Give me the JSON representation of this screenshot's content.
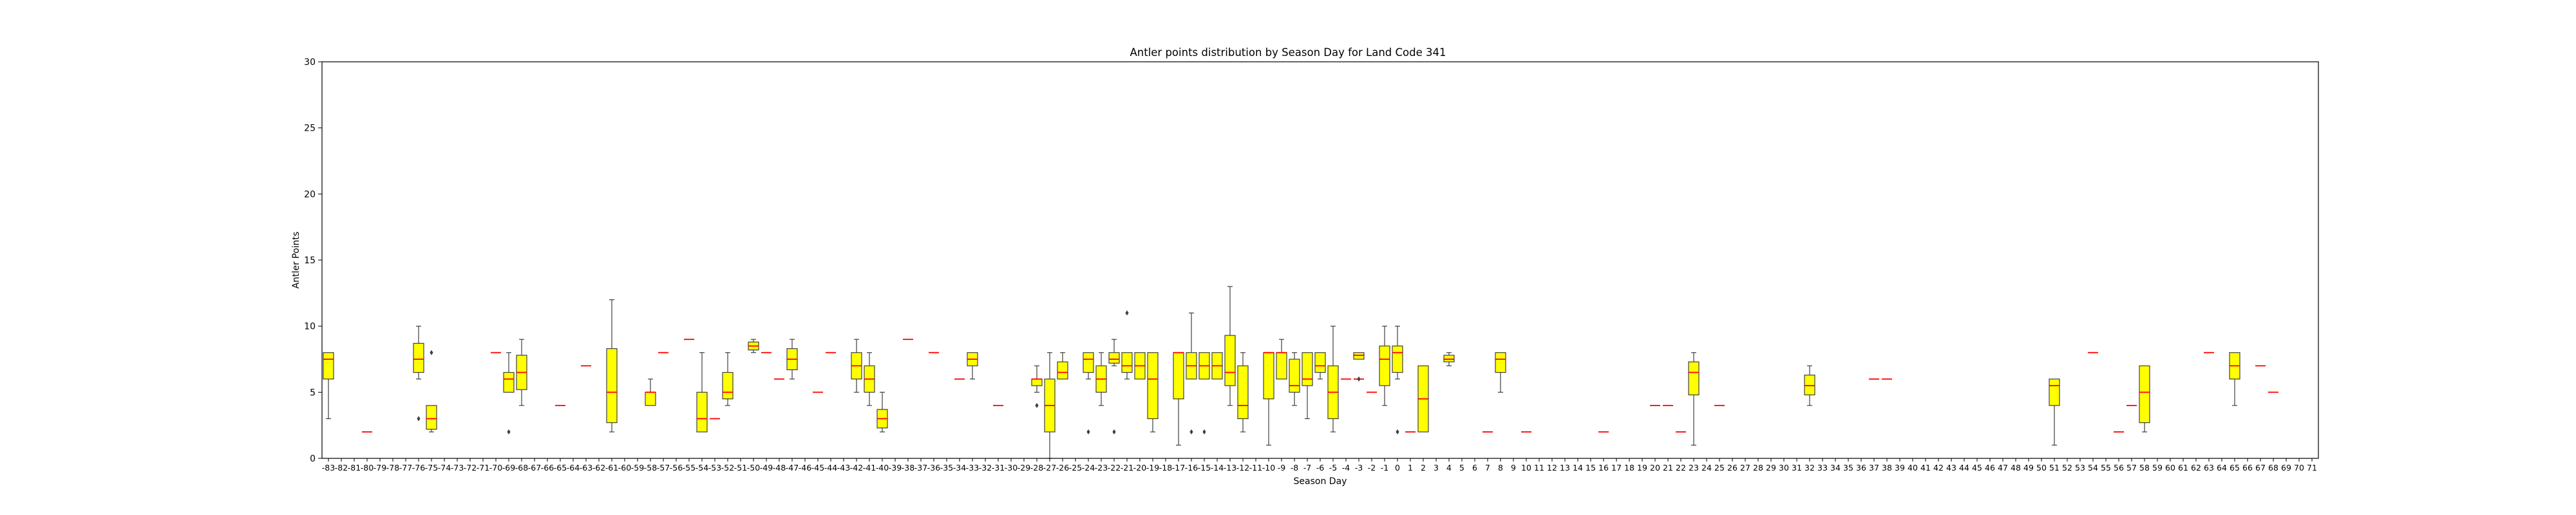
{
  "chart_data": {
    "type": "box",
    "title": "Antler points distribution by Season Day for Land Code 341",
    "xlabel": "Season Day",
    "ylabel": "Antler Points",
    "ylim": [
      0,
      30
    ],
    "yticks": [
      0,
      5,
      10,
      15,
      20,
      25,
      30
    ],
    "x_range": [
      -83,
      71
    ],
    "grid": false,
    "colors": {
      "box_fill": "#ffff00",
      "box_edge": "#3f3f3f",
      "median": "#ff0000",
      "whisker": "#3f3f3f",
      "flier": "#3f3f3f"
    },
    "boxes": [
      {
        "day": -83,
        "whislo": 3,
        "q1": 6,
        "med": 7.5,
        "q3": 8,
        "whishi": 8,
        "fliers": []
      },
      {
        "day": -80,
        "whislo": 2,
        "q1": 2,
        "med": 2,
        "q3": 2,
        "whishi": 2,
        "fliers": []
      },
      {
        "day": -76,
        "whislo": 6,
        "q1": 6.5,
        "med": 7.5,
        "q3": 8.7,
        "whishi": 10,
        "fliers": [
          3
        ]
      },
      {
        "day": -75,
        "whislo": 2,
        "q1": 2.2,
        "med": 3,
        "q3": 4,
        "whishi": 4,
        "fliers": [
          8
        ]
      },
      {
        "day": -70,
        "whislo": 8,
        "q1": 8,
        "med": 8,
        "q3": 8,
        "whishi": 8,
        "fliers": []
      },
      {
        "day": -69,
        "whislo": 5,
        "q1": 5,
        "med": 6,
        "q3": 6.5,
        "whishi": 8,
        "fliers": [
          2
        ]
      },
      {
        "day": -68,
        "whislo": 4,
        "q1": 5.2,
        "med": 6.5,
        "q3": 7.8,
        "whishi": 9,
        "fliers": []
      },
      {
        "day": -65,
        "whislo": 4,
        "q1": 4,
        "med": 4,
        "q3": 4,
        "whishi": 4,
        "fliers": []
      },
      {
        "day": -63,
        "whislo": 7,
        "q1": 7,
        "med": 7,
        "q3": 7,
        "whishi": 7,
        "fliers": []
      },
      {
        "day": -61,
        "whislo": 2,
        "q1": 2.7,
        "med": 5,
        "q3": 8.3,
        "whishi": 12,
        "fliers": []
      },
      {
        "day": -58,
        "whislo": 4,
        "q1": 4,
        "med": 5,
        "q3": 5,
        "whishi": 6,
        "fliers": []
      },
      {
        "day": -57,
        "whislo": 8,
        "q1": 8,
        "med": 8,
        "q3": 8,
        "whishi": 8,
        "fliers": []
      },
      {
        "day": -55,
        "whislo": 9,
        "q1": 9,
        "med": 9,
        "q3": 9,
        "whishi": 9,
        "fliers": []
      },
      {
        "day": -54,
        "whislo": 2,
        "q1": 2,
        "med": 3,
        "q3": 5,
        "whishi": 8,
        "fliers": []
      },
      {
        "day": -53,
        "whislo": 3,
        "q1": 3,
        "med": 3,
        "q3": 3,
        "whishi": 3,
        "fliers": []
      },
      {
        "day": -52,
        "whislo": 4,
        "q1": 4.5,
        "med": 5,
        "q3": 6.5,
        "whishi": 8,
        "fliers": []
      },
      {
        "day": -50,
        "whislo": 8,
        "q1": 8.2,
        "med": 8.5,
        "q3": 8.8,
        "whishi": 9,
        "fliers": []
      },
      {
        "day": -49,
        "whislo": 8,
        "q1": 8,
        "med": 8,
        "q3": 8,
        "whishi": 8,
        "fliers": []
      },
      {
        "day": -48,
        "whislo": 6,
        "q1": 6,
        "med": 6,
        "q3": 6,
        "whishi": 6,
        "fliers": []
      },
      {
        "day": -47,
        "whislo": 6,
        "q1": 6.7,
        "med": 7.5,
        "q3": 8.3,
        "whishi": 9,
        "fliers": []
      },
      {
        "day": -45,
        "whislo": 5,
        "q1": 5,
        "med": 5,
        "q3": 5,
        "whishi": 5,
        "fliers": []
      },
      {
        "day": -44,
        "whislo": 8,
        "q1": 8,
        "med": 8,
        "q3": 8,
        "whishi": 8,
        "fliers": []
      },
      {
        "day": -42,
        "whislo": 5,
        "q1": 6,
        "med": 7,
        "q3": 8,
        "whishi": 9,
        "fliers": []
      },
      {
        "day": -41,
        "whislo": 4,
        "q1": 5,
        "med": 6,
        "q3": 7,
        "whishi": 8,
        "fliers": []
      },
      {
        "day": -40,
        "whislo": 2,
        "q1": 2.3,
        "med": 3,
        "q3": 3.7,
        "whishi": 5,
        "fliers": []
      },
      {
        "day": -38,
        "whislo": 9,
        "q1": 9,
        "med": 9,
        "q3": 9,
        "whishi": 9,
        "fliers": []
      },
      {
        "day": -36,
        "whislo": 8,
        "q1": 8,
        "med": 8,
        "q3": 8,
        "whishi": 8,
        "fliers": []
      },
      {
        "day": -34,
        "whislo": 6,
        "q1": 6,
        "med": 6,
        "q3": 6,
        "whishi": 6,
        "fliers": []
      },
      {
        "day": -33,
        "whislo": 6,
        "q1": 7,
        "med": 7.5,
        "q3": 8,
        "whishi": 8,
        "fliers": []
      },
      {
        "day": -31,
        "whislo": 4,
        "q1": 4,
        "med": 4,
        "q3": 4,
        "whishi": 4,
        "fliers": []
      },
      {
        "day": -28,
        "whislo": 5,
        "q1": 5.5,
        "med": 6,
        "q3": 6,
        "whishi": 7,
        "fliers": [
          4
        ]
      },
      {
        "day": -27,
        "whislo": 0,
        "q1": 2,
        "med": 4,
        "q3": 6,
        "whishi": 8,
        "fliers": []
      },
      {
        "day": -26,
        "whislo": 6,
        "q1": 6,
        "med": 6.5,
        "q3": 7.3,
        "whishi": 8,
        "fliers": []
      },
      {
        "day": -24,
        "whislo": 6,
        "q1": 6.5,
        "med": 7.5,
        "q3": 8,
        "whishi": 8,
        "fliers": [
          2
        ]
      },
      {
        "day": -23,
        "whislo": 4,
        "q1": 5,
        "med": 6,
        "q3": 7,
        "whishi": 8,
        "fliers": []
      },
      {
        "day": -22,
        "whislo": 7,
        "q1": 7.2,
        "med": 7.5,
        "q3": 8,
        "whishi": 9,
        "fliers": [
          2
        ]
      },
      {
        "day": -21,
        "whislo": 6,
        "q1": 6.5,
        "med": 7,
        "q3": 8,
        "whishi": 8,
        "fliers": [
          11
        ]
      },
      {
        "day": -20,
        "whislo": 6,
        "q1": 6,
        "med": 7,
        "q3": 8,
        "whishi": 8,
        "fliers": []
      },
      {
        "day": -19,
        "whislo": 2,
        "q1": 3,
        "med": 6,
        "q3": 8,
        "whishi": 8,
        "fliers": []
      },
      {
        "day": -17,
        "whislo": 1,
        "q1": 4.5,
        "med": 8,
        "q3": 8,
        "whishi": 8,
        "fliers": []
      },
      {
        "day": -16,
        "whislo": 6,
        "q1": 6,
        "med": 7,
        "q3": 8,
        "whishi": 11,
        "fliers": [
          2
        ]
      },
      {
        "day": -15,
        "whislo": 6,
        "q1": 6,
        "med": 7,
        "q3": 8,
        "whishi": 8,
        "fliers": [
          2
        ]
      },
      {
        "day": -14,
        "whislo": 6,
        "q1": 6,
        "med": 7,
        "q3": 8,
        "whishi": 8,
        "fliers": []
      },
      {
        "day": -13,
        "whislo": 4,
        "q1": 5.5,
        "med": 6.5,
        "q3": 9.3,
        "whishi": 13,
        "fliers": []
      },
      {
        "day": -12,
        "whislo": 2,
        "q1": 3,
        "med": 4,
        "q3": 7,
        "whishi": 8,
        "fliers": []
      },
      {
        "day": -10,
        "whislo": 1,
        "q1": 4.5,
        "med": 8,
        "q3": 8,
        "whishi": 8,
        "fliers": []
      },
      {
        "day": -9,
        "whislo": 6,
        "q1": 6,
        "med": 8,
        "q3": 8,
        "whishi": 9,
        "fliers": []
      },
      {
        "day": -8,
        "whislo": 4,
        "q1": 5,
        "med": 5.5,
        "q3": 7.5,
        "whishi": 8,
        "fliers": []
      },
      {
        "day": -7,
        "whislo": 3,
        "q1": 5.5,
        "med": 6,
        "q3": 8,
        "whishi": 8,
        "fliers": []
      },
      {
        "day": -6,
        "whislo": 6,
        "q1": 6.5,
        "med": 7,
        "q3": 8,
        "whishi": 8,
        "fliers": []
      },
      {
        "day": -5,
        "whislo": 2,
        "q1": 3,
        "med": 5,
        "q3": 7,
        "whishi": 10,
        "fliers": []
      },
      {
        "day": -4,
        "whislo": 6,
        "q1": 6,
        "med": 6,
        "q3": 6,
        "whishi": 6,
        "fliers": []
      },
      {
        "day": -3,
        "whislo": 6,
        "q1": 6,
        "med": 6,
        "q3": 6,
        "whishi": 6,
        "fliers": [
          6
        ]
      },
      {
        "day": -2,
        "whislo": 5,
        "q1": 5,
        "med": 5,
        "q3": 5,
        "whishi": 5,
        "fliers": []
      },
      {
        "day": -3,
        "whislo": 7.5,
        "q1": 7.5,
        "med": 7.8,
        "q3": 8,
        "whishi": 8,
        "fliers": []
      },
      {
        "day": -1,
        "whislo": 4,
        "q1": 5.5,
        "med": 7.5,
        "q3": 8.5,
        "whishi": 10,
        "fliers": []
      },
      {
        "day": 0,
        "whislo": 6,
        "q1": 6.5,
        "med": 8,
        "q3": 8.5,
        "whishi": 10,
        "fliers": [
          2
        ]
      },
      {
        "day": 1,
        "whislo": 2,
        "q1": 2,
        "med": 2,
        "q3": 2,
        "whishi": 2,
        "fliers": []
      },
      {
        "day": 2,
        "whislo": 2,
        "q1": 2,
        "med": 4.5,
        "q3": 7,
        "whishi": 7,
        "fliers": []
      },
      {
        "day": 4,
        "whislo": 7,
        "q1": 7.3,
        "med": 7.5,
        "q3": 7.8,
        "whishi": 8,
        "fliers": []
      },
      {
        "day": 7,
        "whislo": 2,
        "q1": 2,
        "med": 2,
        "q3": 2,
        "whishi": 2,
        "fliers": []
      },
      {
        "day": 8,
        "whislo": 5,
        "q1": 6.5,
        "med": 7.5,
        "q3": 8,
        "whishi": 8,
        "fliers": []
      },
      {
        "day": 10,
        "whislo": 2,
        "q1": 2,
        "med": 2,
        "q3": 2,
        "whishi": 2,
        "fliers": []
      },
      {
        "day": 16,
        "whislo": 2,
        "q1": 2,
        "med": 2,
        "q3": 2,
        "whishi": 2,
        "fliers": []
      },
      {
        "day": 20,
        "whislo": 4,
        "q1": 4,
        "med": 4,
        "q3": 4,
        "whishi": 4,
        "fliers": []
      },
      {
        "day": 21,
        "whislo": 4,
        "q1": 4,
        "med": 4,
        "q3": 4,
        "whishi": 4,
        "fliers": []
      },
      {
        "day": 22,
        "whislo": 2,
        "q1": 2,
        "med": 2,
        "q3": 2,
        "whishi": 2,
        "fliers": []
      },
      {
        "day": 23,
        "whislo": 1,
        "q1": 4.8,
        "med": 6.5,
        "q3": 7.3,
        "whishi": 8,
        "fliers": []
      },
      {
        "day": 25,
        "whislo": 4,
        "q1": 4,
        "med": 4,
        "q3": 4,
        "whishi": 4,
        "fliers": []
      },
      {
        "day": 32,
        "whislo": 4,
        "q1": 4.8,
        "med": 5.5,
        "q3": 6.3,
        "whishi": 7,
        "fliers": []
      },
      {
        "day": 37,
        "whislo": 6,
        "q1": 6,
        "med": 6,
        "q3": 6,
        "whishi": 6,
        "fliers": []
      },
      {
        "day": 38,
        "whislo": 6,
        "q1": 6,
        "med": 6,
        "q3": 6,
        "whishi": 6,
        "fliers": []
      },
      {
        "day": 51,
        "whislo": 1,
        "q1": 4,
        "med": 5.5,
        "q3": 6,
        "whishi": 6,
        "fliers": []
      },
      {
        "day": 54,
        "whislo": 8,
        "q1": 8,
        "med": 8,
        "q3": 8,
        "whishi": 8,
        "fliers": []
      },
      {
        "day": 56,
        "whislo": 2,
        "q1": 2,
        "med": 2,
        "q3": 2,
        "whishi": 2,
        "fliers": []
      },
      {
        "day": 57,
        "whislo": 4,
        "q1": 4,
        "med": 4,
        "q3": 4,
        "whishi": 4,
        "fliers": []
      },
      {
        "day": 58,
        "whislo": 2,
        "q1": 2.7,
        "med": 5,
        "q3": 7,
        "whishi": 7,
        "fliers": []
      },
      {
        "day": 63,
        "whislo": 8,
        "q1": 8,
        "med": 8,
        "q3": 8,
        "whishi": 8,
        "fliers": []
      },
      {
        "day": 65,
        "whislo": 4,
        "q1": 6,
        "med": 7,
        "q3": 8,
        "whishi": 8,
        "fliers": []
      },
      {
        "day": 67,
        "whislo": 7,
        "q1": 7,
        "med": 7,
        "q3": 7,
        "whishi": 7,
        "fliers": []
      },
      {
        "day": 68,
        "whislo": 5,
        "q1": 5,
        "med": 5,
        "q3": 5,
        "whishi": 5,
        "fliers": []
      }
    ]
  }
}
